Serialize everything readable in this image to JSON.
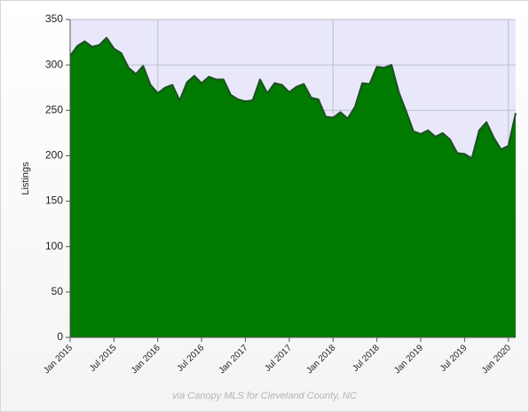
{
  "chart_data": {
    "type": "area",
    "ylabel": "Listings",
    "ylim": [
      0,
      350
    ],
    "yticks": [
      0,
      50,
      100,
      150,
      200,
      250,
      300,
      350
    ],
    "xlim": [
      0,
      61
    ],
    "xticks": [
      {
        "label": "Jan 2015",
        "month": 0
      },
      {
        "label": "Jul 2015",
        "month": 6
      },
      {
        "label": "Jan 2016",
        "month": 12
      },
      {
        "label": "Jul 2016",
        "month": 18
      },
      {
        "label": "Jan 2017",
        "month": 24
      },
      {
        "label": "Jul 2017",
        "month": 30
      },
      {
        "label": "Jan 2018",
        "month": 36
      },
      {
        "label": "Jul 2018",
        "month": 42
      },
      {
        "label": "Jan 2019",
        "month": 48
      },
      {
        "label": "Jul 2019",
        "month": 54
      },
      {
        "label": "Jan 2020",
        "month": 60
      }
    ],
    "grid": true,
    "fill_color": "#007a00",
    "line_color": "#1f4f24",
    "plot_background": "#e8e8fa",
    "values": [
      310,
      321,
      326,
      320,
      322,
      330,
      318,
      313,
      297,
      290,
      299,
      278,
      269,
      275,
      278,
      261,
      281,
      288,
      280,
      287,
      284,
      284,
      267,
      262,
      260,
      261,
      284,
      269,
      280,
      278,
      270,
      276,
      279,
      264,
      262,
      243,
      242,
      248,
      241,
      254,
      280,
      279,
      298,
      297,
      300,
      270,
      249,
      227,
      224,
      228,
      221,
      225,
      218,
      203,
      202,
      197,
      228,
      237,
      220,
      207,
      211,
      247
    ]
  },
  "source_note": "via Canopy MLS for Cleveland County, NC"
}
